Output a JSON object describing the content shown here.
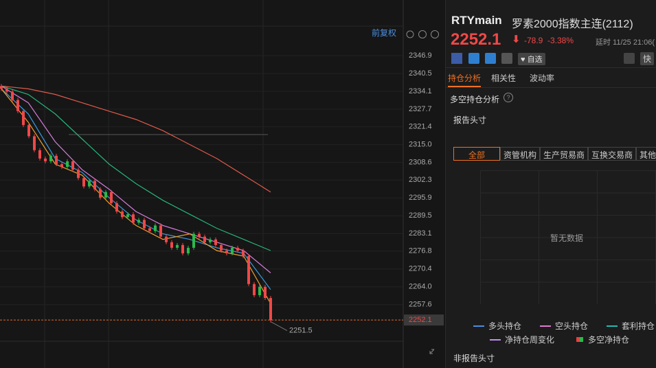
{
  "header": {
    "symbol": "RTYmain",
    "name": "罗素2000指数主连(2112)",
    "price": 2252.1,
    "change": -78.9,
    "pct": "-3.38%",
    "delay": "延时 11/25 21:06(",
    "watch": "自选",
    "quick": "快"
  },
  "tabs": [
    "持仓分析",
    "相关性",
    "波动率"
  ],
  "section": {
    "title": "多空持仓分析",
    "report": "报告头寸",
    "filters": [
      "全部",
      "资管机构",
      "生产贸易商",
      "互换交易商",
      "其他"
    ],
    "empty": "暂无数据",
    "legend": [
      {
        "name": "多头持仓",
        "color": "#4a8fe0"
      },
      {
        "name": "空头持仓",
        "color": "#e07bd0"
      },
      {
        "name": "套利持仓",
        "color": "#28b8b0"
      },
      {
        "name": "净持仓周变化",
        "color": "#c08cf0"
      },
      {
        "name": "多空净持仓",
        "color": "#e84040"
      }
    ],
    "nonreport": "非报告头寸"
  },
  "chart": {
    "adjust": "前复权",
    "ylim": [
      2245,
      2352
    ],
    "yticks": [
      2346.9,
      2340.5,
      2334.1,
      2327.7,
      2321.4,
      {
        "value": 2315,
        "label": "2315.0"
      },
      2308.6,
      2302.3,
      2295.9,
      2289.5,
      2283.1,
      2276.8,
      2270.4,
      {
        "value": 2264,
        "label": "2264.0"
      },
      2257.6
    ],
    "last_price": 2252.1,
    "low": 2251.5,
    "closes": [
      2335,
      2334,
      2331,
      2327,
      2322,
      2318,
      2313,
      2310,
      2309,
      2311,
      2308,
      2307,
      2309,
      2306,
      2303,
      2300,
      2302,
      2299,
      2296,
      2298,
      2294,
      2291,
      2289,
      2290,
      2287,
      2288,
      2285,
      2284,
      2286,
      2282,
      2280,
      2278,
      2279,
      2276,
      2278,
      2283,
      2282,
      2280,
      2281,
      2279,
      2277,
      2276,
      2278,
      2277,
      2275,
      2265,
      2261,
      2264,
      2260,
      2252
    ],
    "ma": [
      {
        "color": "#e05a4a",
        "values": [
          2336,
          2335,
          2333,
          2330,
          2327,
          2324,
          2320,
          2315,
          2310,
          2304,
          2298
        ]
      },
      {
        "color": "#27b57a",
        "values": [
          2336,
          2333,
          2326,
          2317,
          2308,
          2301,
          2295,
          2290,
          2285,
          2281,
          2277
        ]
      },
      {
        "color": "#d77ee0",
        "values": [
          2336,
          2330,
          2316,
          2306,
          2299,
          2291,
          2286,
          2283,
          2280,
          2277,
          2269
        ]
      },
      {
        "color": "#3a9be0",
        "values": [
          2335,
          2326,
          2310,
          2305,
          2296,
          2288,
          2283,
          2281,
          2278,
          2276,
          2263
        ]
      },
      {
        "color": "#f0a030",
        "values": [
          2335,
          2323,
          2308,
          2304,
          2294,
          2286,
          2281,
          2283,
          2277,
          2275,
          2258
        ]
      }
    ]
  }
}
